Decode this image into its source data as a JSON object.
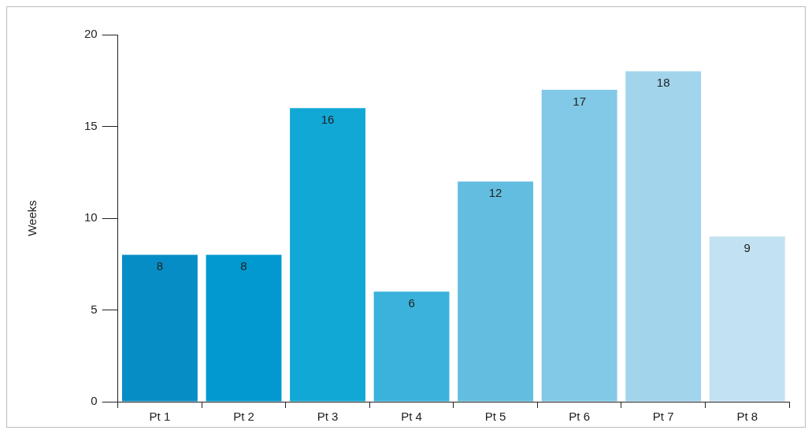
{
  "chart_data": {
    "type": "bar",
    "ylabel": "Weeks",
    "categories": [
      "Pt 1",
      "Pt 2",
      "Pt 3",
      "Pt 4",
      "Pt 5",
      "Pt 6",
      "Pt 7",
      "Pt 8"
    ],
    "values": [
      8,
      8,
      16,
      6,
      12,
      17,
      18,
      9
    ],
    "colors": [
      "#078dc6",
      "#0199cf",
      "#12a8d6",
      "#3bb2dc",
      "#62bde0",
      "#82c8e7",
      "#a2d4ec",
      "#c3e2f1"
    ],
    "ylim": [
      0,
      20
    ],
    "yticks": [
      0,
      5,
      10,
      15,
      20
    ],
    "grid": false,
    "legend": false,
    "data_labels": true
  }
}
